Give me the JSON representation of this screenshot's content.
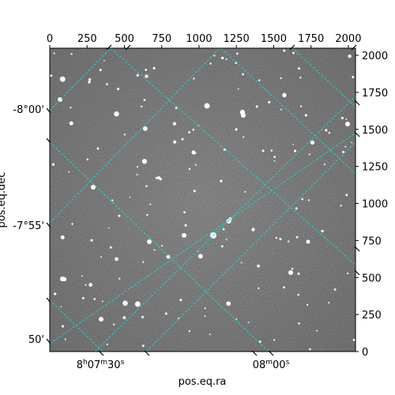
{
  "top_axis": {
    "tick_labels": [
      "0",
      "250",
      "500",
      "750",
      "1000",
      "1250",
      "1500",
      "1750",
      "2000"
    ]
  },
  "right_axis": {
    "tick_labels": [
      "0",
      "250",
      "500",
      "750",
      "1000",
      "1250",
      "1500",
      "1750",
      "2000"
    ]
  },
  "left_axis": {
    "label": "pos.eq.dec",
    "tick_labels": [
      "-8°00'",
      "-7°55'",
      "50'"
    ]
  },
  "bottom_axis": {
    "label": "pos.eq.ra",
    "tick_labels": [
      {
        "main": "8",
        "sup1": "h",
        "mid": "07",
        "sup2": "m",
        "end": "30",
        "sup3": "s"
      },
      {
        "main": "",
        "sup1": "",
        "mid": "08",
        "sup2": "m",
        "end": "00",
        "sup3": "s"
      }
    ]
  },
  "colors": {
    "grid": "#1fd3d3",
    "image_background": "#6e6e6e"
  }
}
